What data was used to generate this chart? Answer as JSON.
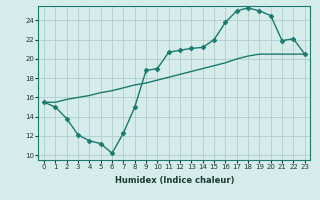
{
  "xlabel": "Humidex (Indice chaleur)",
  "bg_color": "#d6ecea",
  "grid_color": "#aecfcc",
  "line_color": "#1a7a6e",
  "marker": "D",
  "markersize": 2.5,
  "linewidth": 1.0,
  "xlim": [
    -0.5,
    23.5
  ],
  "ylim": [
    9.5,
    25.5
  ],
  "xticks": [
    0,
    1,
    2,
    3,
    4,
    5,
    6,
    7,
    8,
    9,
    10,
    11,
    12,
    13,
    14,
    15,
    16,
    17,
    18,
    19,
    20,
    21,
    22,
    23
  ],
  "yticks": [
    10,
    12,
    14,
    16,
    18,
    20,
    22,
    24
  ],
  "series1_x": [
    0,
    1,
    2,
    3,
    4,
    5,
    6,
    7,
    8,
    9,
    10,
    11,
    12,
    13,
    14,
    15,
    16,
    17,
    18,
    19,
    20,
    21,
    22,
    23
  ],
  "series1_y": [
    15.5,
    15.0,
    13.8,
    12.1,
    11.5,
    11.2,
    10.2,
    12.3,
    15.0,
    18.8,
    19.0,
    20.7,
    20.9,
    21.1,
    21.2,
    22.0,
    23.8,
    25.0,
    25.3,
    25.0,
    24.5,
    21.9,
    22.1,
    20.5
  ],
  "series2_x": [
    0,
    1,
    2,
    3,
    4,
    5,
    6,
    7,
    8,
    9,
    10,
    11,
    12,
    13,
    14,
    15,
    16,
    17,
    18,
    19,
    20,
    21,
    22,
    23
  ],
  "series2_y": [
    15.5,
    15.5,
    15.8,
    16.0,
    16.2,
    16.5,
    16.7,
    17.0,
    17.3,
    17.5,
    17.8,
    18.1,
    18.4,
    18.7,
    19.0,
    19.3,
    19.6,
    20.0,
    20.3,
    20.5,
    20.5,
    20.5,
    20.5,
    20.5
  ]
}
